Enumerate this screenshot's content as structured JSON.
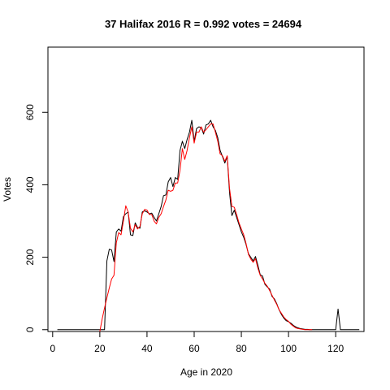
{
  "chart_data": {
    "type": "line",
    "title": "37 Halifax 2016 R = 0.992 votes = 24694",
    "xlabel": "Age in 2020",
    "ylabel": "Votes",
    "xlim": [
      -2,
      132
    ],
    "ylim": [
      -5,
      780
    ],
    "x_ticks": [
      0,
      20,
      40,
      60,
      80,
      100,
      120
    ],
    "y_ticks": [
      0,
      200,
      400,
      600
    ],
    "grid": false,
    "legend": "none",
    "series": [
      {
        "color": "#000000",
        "points": [
          [
            2,
            0
          ],
          [
            22,
            0
          ],
          [
            23,
            190
          ],
          [
            24,
            222
          ],
          [
            25,
            220
          ],
          [
            26,
            188
          ],
          [
            27,
            270
          ],
          [
            28,
            278
          ],
          [
            29,
            272
          ],
          [
            30,
            312
          ],
          [
            31,
            320
          ],
          [
            32,
            325
          ],
          [
            33,
            262
          ],
          [
            34,
            260
          ],
          [
            35,
            295
          ],
          [
            36,
            282
          ],
          [
            37,
            280
          ],
          [
            38,
            325
          ],
          [
            39,
            328
          ],
          [
            40,
            325
          ],
          [
            41,
            320
          ],
          [
            42,
            322
          ],
          [
            43,
            310
          ],
          [
            44,
            300
          ],
          [
            45,
            320
          ],
          [
            46,
            340
          ],
          [
            47,
            370
          ],
          [
            48,
            372
          ],
          [
            49,
            408
          ],
          [
            50,
            420
          ],
          [
            51,
            395
          ],
          [
            52,
            420
          ],
          [
            53,
            415
          ],
          [
            54,
            495
          ],
          [
            55,
            520
          ],
          [
            56,
            500
          ],
          [
            57,
            525
          ],
          [
            58,
            545
          ],
          [
            59,
            578
          ],
          [
            60,
            520
          ],
          [
            61,
            555
          ],
          [
            62,
            560
          ],
          [
            63,
            558
          ],
          [
            64,
            540
          ],
          [
            65,
            565
          ],
          [
            66,
            568
          ],
          [
            67,
            578
          ],
          [
            68,
            560
          ],
          [
            69,
            550
          ],
          [
            70,
            530
          ],
          [
            71,
            495
          ],
          [
            72,
            478
          ],
          [
            73,
            460
          ],
          [
            74,
            478
          ],
          [
            75,
            378
          ],
          [
            76,
            315
          ],
          [
            77,
            330
          ],
          [
            78,
            310
          ],
          [
            79,
            290
          ],
          [
            80,
            270
          ],
          [
            81,
            255
          ],
          [
            82,
            235
          ],
          [
            83,
            210
          ],
          [
            84,
            200
          ],
          [
            85,
            190
          ],
          [
            86,
            202
          ],
          [
            87,
            178
          ],
          [
            88,
            152
          ],
          [
            89,
            148
          ],
          [
            90,
            125
          ],
          [
            91,
            118
          ],
          [
            92,
            112
          ],
          [
            93,
            92
          ],
          [
            94,
            85
          ],
          [
            95,
            72
          ],
          [
            96,
            55
          ],
          [
            97,
            42
          ],
          [
            98,
            32
          ],
          [
            99,
            25
          ],
          [
            100,
            22
          ],
          [
            101,
            18
          ],
          [
            102,
            12
          ],
          [
            103,
            8
          ],
          [
            104,
            5
          ],
          [
            105,
            3
          ],
          [
            106,
            2
          ],
          [
            107,
            1
          ],
          [
            108,
            1
          ],
          [
            109,
            0
          ],
          [
            120,
            0
          ],
          [
            121,
            57
          ],
          [
            122,
            0
          ],
          [
            130,
            0
          ]
        ]
      },
      {
        "color": "#ff0000",
        "points": [
          [
            20,
            -5
          ],
          [
            21,
            30
          ],
          [
            22,
            60
          ],
          [
            23,
            88
          ],
          [
            24,
            115
          ],
          [
            25,
            140
          ],
          [
            26,
            150
          ],
          [
            27,
            240
          ],
          [
            28,
            268
          ],
          [
            29,
            262
          ],
          [
            30,
            300
          ],
          [
            31,
            342
          ],
          [
            32,
            325
          ],
          [
            33,
            280
          ],
          [
            34,
            270
          ],
          [
            35,
            290
          ],
          [
            36,
            278
          ],
          [
            37,
            285
          ],
          [
            38,
            320
          ],
          [
            39,
            332
          ],
          [
            40,
            330
          ],
          [
            41,
            318
          ],
          [
            42,
            318
          ],
          [
            43,
            300
          ],
          [
            44,
            292
          ],
          [
            45,
            310
          ],
          [
            46,
            320
          ],
          [
            47,
            340
          ],
          [
            48,
            358
          ],
          [
            49,
            385
          ],
          [
            50,
            382
          ],
          [
            51,
            385
          ],
          [
            52,
            405
          ],
          [
            53,
            405
          ],
          [
            54,
            440
          ],
          [
            55,
            500
          ],
          [
            56,
            470
          ],
          [
            57,
            495
          ],
          [
            58,
            530
          ],
          [
            59,
            560
          ],
          [
            60,
            515
          ],
          [
            61,
            545
          ],
          [
            62,
            545
          ],
          [
            63,
            560
          ],
          [
            64,
            545
          ],
          [
            65,
            552
          ],
          [
            66,
            560
          ],
          [
            67,
            568
          ],
          [
            68,
            568
          ],
          [
            69,
            545
          ],
          [
            70,
            520
          ],
          [
            71,
            485
          ],
          [
            72,
            480
          ],
          [
            73,
            465
          ],
          [
            74,
            480
          ],
          [
            75,
            390
          ],
          [
            76,
            340
          ],
          [
            77,
            338
          ],
          [
            78,
            318
          ],
          [
            79,
            295
          ],
          [
            80,
            278
          ],
          [
            81,
            262
          ],
          [
            82,
            238
          ],
          [
            83,
            208
          ],
          [
            84,
            195
          ],
          [
            85,
            186
          ],
          [
            86,
            196
          ],
          [
            87,
            170
          ],
          [
            88,
            150
          ],
          [
            89,
            140
          ],
          [
            90,
            128
          ],
          [
            91,
            120
          ],
          [
            92,
            108
          ],
          [
            93,
            95
          ],
          [
            94,
            82
          ],
          [
            95,
            70
          ],
          [
            96,
            55
          ],
          [
            97,
            45
          ],
          [
            98,
            35
          ],
          [
            99,
            28
          ],
          [
            100,
            23
          ],
          [
            101,
            15
          ],
          [
            102,
            10
          ],
          [
            103,
            5
          ],
          [
            104,
            3
          ],
          [
            105,
            2
          ],
          [
            106,
            1
          ],
          [
            107,
            0
          ],
          [
            108,
            0
          ],
          [
            109,
            0
          ],
          [
            110,
            0
          ]
        ]
      }
    ]
  }
}
